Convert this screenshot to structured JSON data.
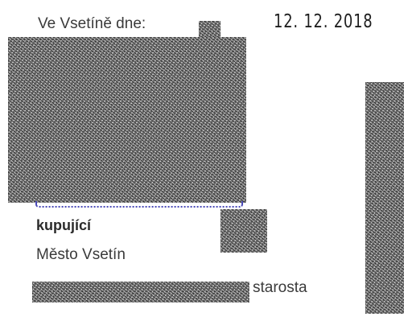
{
  "header": {
    "place_date_label": "Ve Vsetíně dne:",
    "date_stamp": "12. 12. 2018"
  },
  "signatory": {
    "role_label": "kupující",
    "organization": "Město Vsetín",
    "title": "starosta"
  },
  "colors": {
    "text": "#3a3a3a",
    "dotted_line": "#4a4ab8",
    "redaction": "#8a8a8a"
  }
}
